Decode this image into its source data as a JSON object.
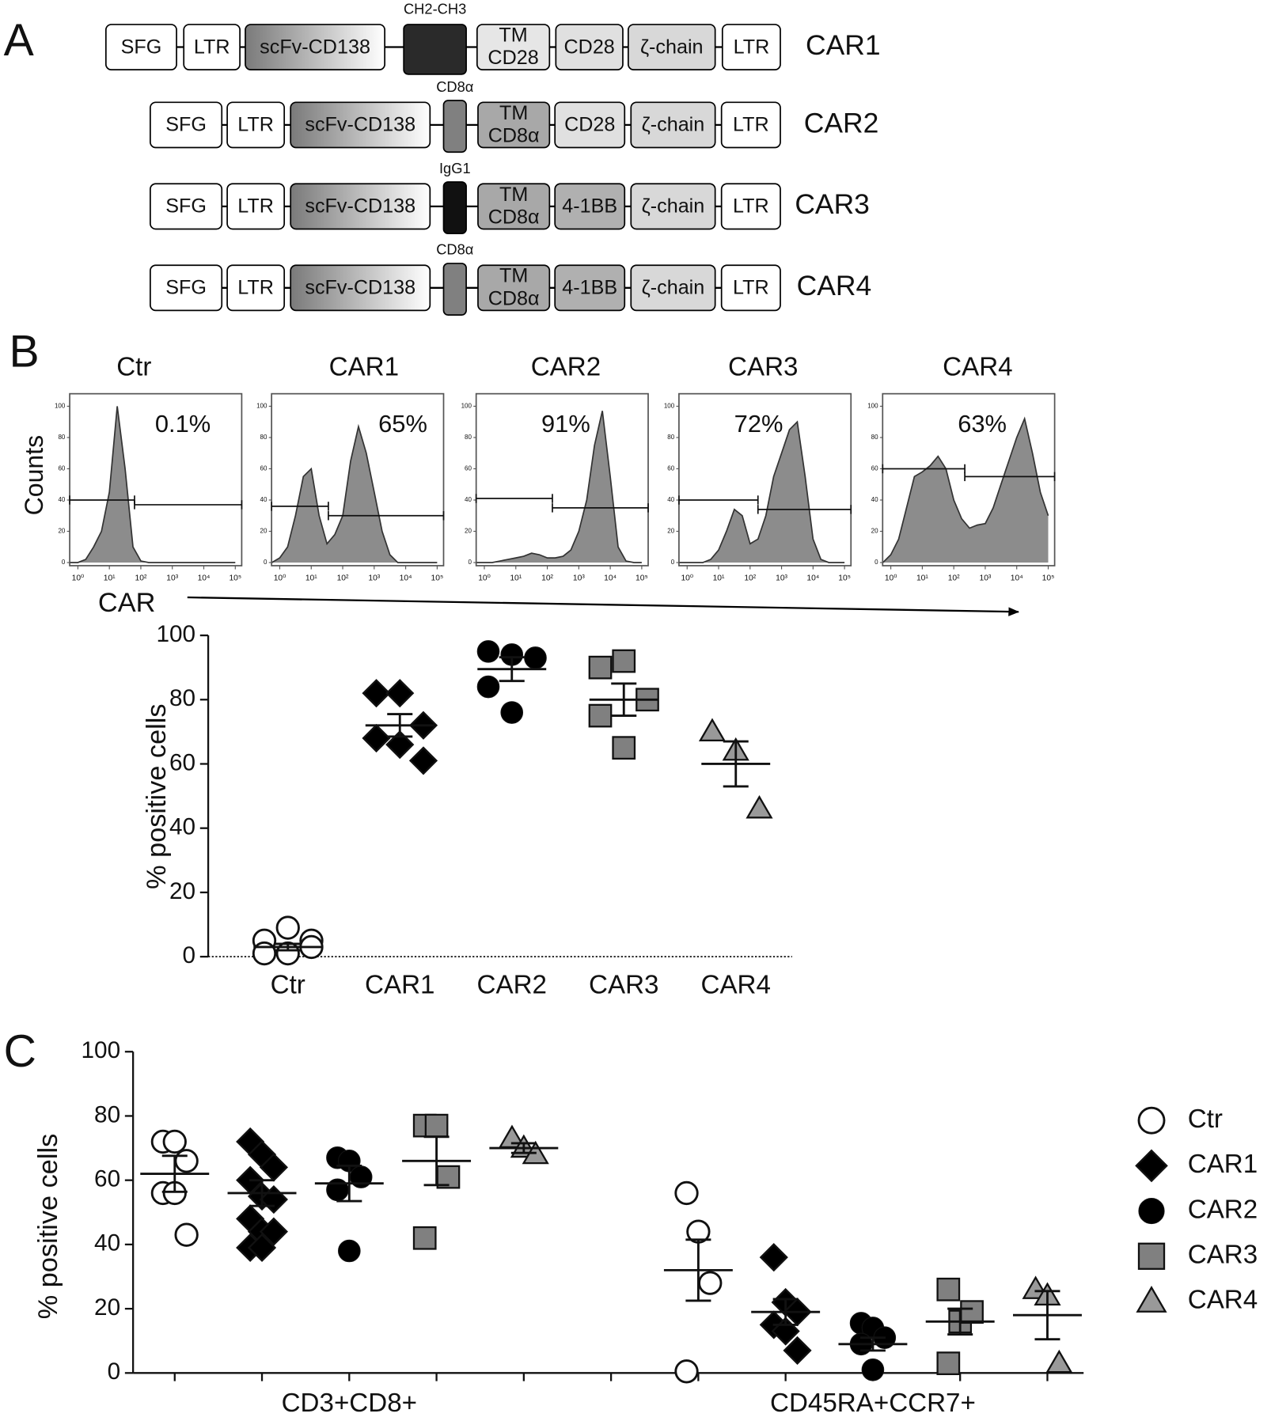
{
  "panel_labels": [
    "A",
    "B",
    "C"
  ],
  "diagram": {
    "constructs": [
      {
        "name": "CAR1",
        "hinge": "CH2-CH3",
        "hinge_color": "#2a2a2a",
        "parts": [
          {
            "lines": [
              "SFG"
            ],
            "fill": "#ffffff"
          },
          {
            "lines": [
              "LTR"
            ],
            "fill": "#ffffff"
          },
          {
            "lines": [
              "scFv-CD138"
            ],
            "fill": "gradient"
          },
          {
            "lines": [
              "TM",
              "CD28"
            ],
            "fill": "#e6e6e6"
          },
          {
            "lines": [
              "CD28"
            ],
            "fill": "#e0e0e0"
          },
          {
            "lines": [
              "ζ-chain"
            ],
            "fill": "#d8d8d8"
          },
          {
            "lines": [
              "LTR"
            ],
            "fill": "#ffffff"
          }
        ]
      },
      {
        "name": "CAR2",
        "hinge": "CD8α",
        "hinge_color": "#808080",
        "parts": [
          {
            "lines": [
              "SFG"
            ],
            "fill": "#ffffff"
          },
          {
            "lines": [
              "LTR"
            ],
            "fill": "#ffffff"
          },
          {
            "lines": [
              "scFv-CD138"
            ],
            "fill": "gradient"
          },
          {
            "lines": [
              "TM",
              "CD8α"
            ],
            "fill": "#a8a8a8"
          },
          {
            "lines": [
              "CD28"
            ],
            "fill": "#e0e0e0"
          },
          {
            "lines": [
              "ζ-chain"
            ],
            "fill": "#d8d8d8"
          },
          {
            "lines": [
              "LTR"
            ],
            "fill": "#ffffff"
          }
        ]
      },
      {
        "name": "CAR3",
        "hinge": "IgG1",
        "hinge_color": "#111111",
        "parts": [
          {
            "lines": [
              "SFG"
            ],
            "fill": "#ffffff"
          },
          {
            "lines": [
              "LTR"
            ],
            "fill": "#ffffff"
          },
          {
            "lines": [
              "scFv-CD138"
            ],
            "fill": "gradient"
          },
          {
            "lines": [
              "TM",
              "CD8α"
            ],
            "fill": "#a8a8a8"
          },
          {
            "lines": [
              "4-1BB"
            ],
            "fill": "#b0b0b0"
          },
          {
            "lines": [
              "ζ-chain"
            ],
            "fill": "#d8d8d8"
          },
          {
            "lines": [
              "LTR"
            ],
            "fill": "#ffffff"
          }
        ]
      },
      {
        "name": "CAR4",
        "hinge": "CD8α",
        "hinge_color": "#808080",
        "parts": [
          {
            "lines": [
              "SFG"
            ],
            "fill": "#ffffff"
          },
          {
            "lines": [
              "LTR"
            ],
            "fill": "#ffffff"
          },
          {
            "lines": [
              "scFv-CD138"
            ],
            "fill": "gradient"
          },
          {
            "lines": [
              "TM",
              "CD8α"
            ],
            "fill": "#a8a8a8"
          },
          {
            "lines": [
              "4-1BB"
            ],
            "fill": "#b0b0b0"
          },
          {
            "lines": [
              "ζ-chain"
            ],
            "fill": "#d8d8d8"
          },
          {
            "lines": [
              "LTR"
            ],
            "fill": "#ffffff"
          }
        ]
      }
    ]
  },
  "chart_data": [
    {
      "type": "histogram-area",
      "title": "Ctr",
      "annotation": "0.1%",
      "ylabel": "Counts",
      "xlabel": "CAR",
      "color": "#8c8c8c",
      "xscale": "log",
      "x": [
        0.56,
        1,
        1.78,
        3.16,
        5.62,
        10,
        17.8,
        31.6,
        56.2,
        100,
        178,
        316,
        562,
        1000,
        1780,
        3160,
        5620,
        10000,
        17800,
        31600,
        56200,
        100000
      ],
      "values": [
        0,
        0,
        2,
        10,
        20,
        45,
        100,
        60,
        10,
        1,
        0,
        0,
        0,
        0,
        0,
        0,
        0,
        0,
        0,
        0,
        0,
        0
      ],
      "gates": [
        {
          "x": [
            0.55,
            63
          ],
          "y": 40
        },
        {
          "x": [
            63,
            160000
          ],
          "y": 37
        }
      ],
      "xlim": [
        0.55,
        160000
      ],
      "ylim": [
        -2,
        108
      ],
      "yticks": [
        0,
        20,
        40,
        60,
        80,
        100
      ],
      "xticks": [
        {
          "value": 1,
          "label": "10⁰"
        },
        {
          "value": 10,
          "label": "10¹"
        },
        {
          "value": 100,
          "label": "10²"
        },
        {
          "value": 1000,
          "label": "10³"
        },
        {
          "value": 10000,
          "label": "10⁴"
        },
        {
          "value": 100000,
          "label": "10⁵"
        }
      ]
    },
    {
      "type": "histogram-area",
      "title": "CAR1",
      "annotation": "65%",
      "color": "#8c8c8c",
      "xscale": "log",
      "x": [
        0.56,
        1,
        1.78,
        3.16,
        5.62,
        10,
        17.8,
        31.6,
        56.2,
        100,
        178,
        316,
        562,
        1000,
        1780,
        3160,
        5620,
        10000,
        17800,
        31600,
        56200,
        100000
      ],
      "values": [
        0,
        3,
        10,
        30,
        55,
        60,
        30,
        12,
        18,
        30,
        65,
        87,
        70,
        45,
        20,
        5,
        0,
        0,
        0,
        0,
        0,
        0
      ],
      "gates": [
        {
          "x": [
            0.55,
            35
          ],
          "y": 36
        },
        {
          "x": [
            35,
            160000
          ],
          "y": 30
        }
      ],
      "xlim": [
        0.55,
        160000
      ],
      "ylim": [
        -2,
        108
      ],
      "yticks": [
        0,
        20,
        40,
        60,
        80,
        100
      ],
      "xticks": [
        {
          "value": 1,
          "label": "10⁰"
        },
        {
          "value": 10,
          "label": "10¹"
        },
        {
          "value": 100,
          "label": "10²"
        },
        {
          "value": 1000,
          "label": "10³"
        },
        {
          "value": 10000,
          "label": "10⁴"
        },
        {
          "value": 100000,
          "label": "10⁵"
        }
      ]
    },
    {
      "type": "histogram-area",
      "title": "CAR2",
      "annotation": "91%",
      "color": "#8c8c8c",
      "xscale": "log",
      "x": [
        0.56,
        1,
        1.78,
        3.16,
        5.62,
        10,
        17.8,
        31.6,
        56.2,
        100,
        178,
        316,
        562,
        1000,
        1780,
        3160,
        5620,
        10000,
        17800,
        31600,
        56200,
        100000
      ],
      "values": [
        0,
        0,
        0,
        1,
        2,
        3,
        4,
        6,
        5,
        3,
        3,
        4,
        8,
        20,
        40,
        75,
        97,
        55,
        10,
        1,
        0,
        0
      ],
      "gates": [
        {
          "x": [
            0.55,
            145
          ],
          "y": 41
        },
        {
          "x": [
            145,
            160000
          ],
          "y": 35
        }
      ],
      "xlim": [
        0.55,
        160000
      ],
      "ylim": [
        -2,
        108
      ],
      "yticks": [
        0,
        20,
        40,
        60,
        80,
        100
      ],
      "xticks": [
        {
          "value": 1,
          "label": "10⁰"
        },
        {
          "value": 10,
          "label": "10¹"
        },
        {
          "value": 100,
          "label": "10²"
        },
        {
          "value": 1000,
          "label": "10³"
        },
        {
          "value": 10000,
          "label": "10⁴"
        },
        {
          "value": 100000,
          "label": "10⁵"
        }
      ]
    },
    {
      "type": "histogram-area",
      "title": "CAR3",
      "annotation": "72%",
      "color": "#8c8c8c",
      "xscale": "log",
      "x": [
        0.56,
        1,
        1.78,
        3.16,
        5.62,
        10,
        17.8,
        31.6,
        56.2,
        100,
        178,
        316,
        562,
        1000,
        1780,
        3160,
        5620,
        10000,
        17800,
        31600,
        56200,
        100000
      ],
      "values": [
        0,
        0,
        0,
        0,
        2,
        8,
        20,
        34,
        30,
        12,
        15,
        30,
        55,
        70,
        85,
        90,
        55,
        15,
        2,
        0,
        0,
        0
      ],
      "gates": [
        {
          "x": [
            0.55,
            178
          ],
          "y": 40
        },
        {
          "x": [
            178,
            160000
          ],
          "y": 34
        }
      ],
      "xlim": [
        0.55,
        160000
      ],
      "ylim": [
        -2,
        108
      ],
      "yticks": [
        0,
        20,
        40,
        60,
        80,
        100
      ],
      "xticks": [
        {
          "value": 1,
          "label": "10⁰"
        },
        {
          "value": 10,
          "label": "10¹"
        },
        {
          "value": 100,
          "label": "10²"
        },
        {
          "value": 1000,
          "label": "10³"
        },
        {
          "value": 10000,
          "label": "10⁴"
        },
        {
          "value": 100000,
          "label": "10⁵"
        }
      ]
    },
    {
      "type": "histogram-area",
      "title": "CAR4",
      "annotation": "63%",
      "color": "#8c8c8c",
      "xscale": "log",
      "x": [
        0.56,
        1,
        1.78,
        3.16,
        5.62,
        10,
        17.8,
        31.6,
        56.2,
        100,
        178,
        316,
        562,
        1000,
        1780,
        3160,
        5620,
        10000,
        17800,
        31600,
        56200,
        100000
      ],
      "values": [
        0,
        5,
        15,
        35,
        55,
        58,
        62,
        68,
        60,
        40,
        28,
        22,
        24,
        25,
        35,
        50,
        65,
        80,
        92,
        70,
        45,
        30
      ],
      "gates": [
        {
          "x": [
            0.55,
            224
          ],
          "y": 60
        },
        {
          "x": [
            224,
            160000
          ],
          "y": 55
        }
      ],
      "xlim": [
        0.55,
        160000
      ],
      "ylim": [
        -2,
        108
      ],
      "yticks": [
        0,
        20,
        40,
        60,
        80,
        100
      ],
      "xticks": [
        {
          "value": 1,
          "label": "10⁰"
        },
        {
          "value": 10,
          "label": "10¹"
        },
        {
          "value": 100,
          "label": "10²"
        },
        {
          "value": 1000,
          "label": "10³"
        },
        {
          "value": 10000,
          "label": "10⁴"
        },
        {
          "value": 100000,
          "label": "10⁵"
        }
      ]
    },
    {
      "type": "dot",
      "ylabel": "% positive cells",
      "categories": [
        "Ctr",
        "CAR1",
        "CAR2",
        "CAR3",
        "CAR4"
      ],
      "values": [
        [
          5,
          9,
          5,
          1,
          1,
          3
        ],
        [
          82,
          82,
          72,
          68,
          66,
          61
        ],
        [
          95,
          94,
          93,
          84,
          76
        ],
        [
          90,
          92,
          80,
          75,
          65
        ],
        [
          70,
          64,
          46
        ]
      ],
      "means": [
        3,
        72,
        89.5,
        80,
        60
      ],
      "sems": [
        1,
        3.5,
        3.7,
        5,
        7
      ],
      "markers": [
        "circle-open",
        "diamond",
        "circle",
        "square",
        "triangle"
      ],
      "colors": [
        "#ffffff",
        "#000000",
        "#000000",
        "#808080",
        "#999999"
      ],
      "ylim": [
        0,
        100
      ],
      "yticks": [
        0,
        20,
        40,
        60,
        80,
        100
      ]
    },
    {
      "type": "grouped-dot",
      "ylabel": "% positive cells",
      "categories": [
        "CD3+CD8+",
        "CD45RA+CCR7+"
      ],
      "series": [
        {
          "name": "Ctr",
          "marker": "circle-open",
          "color": "#ffffff",
          "values": [
            [
              72,
              72,
              66,
              56,
              56,
              43
            ],
            [
              56,
              44,
              28,
              0.5
            ]
          ],
          "mean": [
            62,
            32
          ],
          "sem": [
            5.6,
            9.5
          ]
        },
        {
          "name": "CAR1",
          "marker": "diamond",
          "color": "#000000",
          "values": [
            [
              72,
              68,
              64,
              60,
              55,
              54,
              48,
              44,
              44,
              39,
              39
            ],
            [
              36,
              22,
              19,
              15,
              13,
              7
            ]
          ],
          "mean": [
            56,
            19
          ],
          "sem": [
            4,
            4
          ]
        },
        {
          "name": "CAR2",
          "marker": "circle",
          "color": "#000000",
          "values": [
            [
              67,
              66,
              61,
              57,
              38
            ],
            [
              15.5,
              14,
              11,
              9,
              1
            ]
          ],
          "mean": [
            59,
            9
          ],
          "sem": [
            5.5,
            2
          ]
        },
        {
          "name": "CAR3",
          "marker": "square",
          "color": "#808080",
          "values": [
            [
              77,
              77,
              61,
              42
            ],
            [
              26,
              16,
              19,
              3
            ]
          ],
          "mean": [
            66,
            16
          ],
          "sem": [
            7.5,
            4
          ]
        },
        {
          "name": "CAR4",
          "marker": "triangle",
          "color": "#999999",
          "values": [
            [
              73,
              70,
              68
            ],
            [
              26,
              24,
              3
            ]
          ],
          "mean": [
            70,
            18
          ],
          "sem": [
            1.5,
            7.5
          ]
        }
      ],
      "ylim": [
        0,
        100
      ],
      "yticks": [
        0,
        20,
        40,
        60,
        80,
        100
      ]
    }
  ]
}
